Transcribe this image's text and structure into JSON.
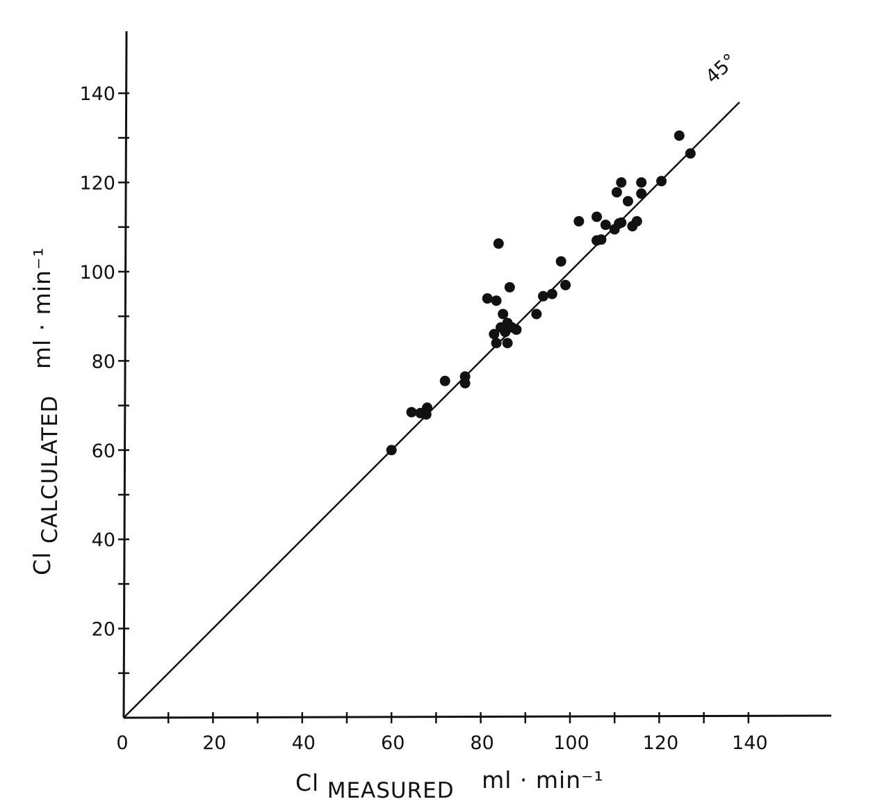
{
  "chart_data": {
    "type": "scatter",
    "xlabel": {
      "main": "Cl",
      "sub": "MEASURED",
      "unit": "ml · min⁻¹"
    },
    "ylabel": {
      "main": "Cl",
      "sub": "CALCULATED",
      "unit": "ml · min⁻¹"
    },
    "xlim": [
      0,
      150
    ],
    "ylim": [
      0,
      150
    ],
    "x_ticks": [
      0,
      20,
      40,
      60,
      80,
      100,
      120,
      140
    ],
    "y_ticks": [
      20,
      40,
      60,
      80,
      100,
      120,
      140
    ],
    "minor_tick_step": 10,
    "grid": false,
    "reference_line": {
      "label": "45°",
      "x": [
        0,
        138
      ],
      "y": [
        0,
        138
      ]
    },
    "points": [
      [
        60,
        60
      ],
      [
        64.5,
        68.5
      ],
      [
        66.5,
        68.3
      ],
      [
        67.8,
        68
      ],
      [
        68,
        69.5
      ],
      [
        72,
        75.5
      ],
      [
        76.5,
        75
      ],
      [
        76.5,
        76.5
      ],
      [
        81.5,
        94
      ],
      [
        83,
        86
      ],
      [
        83.5,
        84
      ],
      [
        83.5,
        93.5
      ],
      [
        84,
        106.3
      ],
      [
        84.5,
        87.5
      ],
      [
        85,
        90.5
      ],
      [
        85.5,
        86.5
      ],
      [
        86,
        88.5
      ],
      [
        86,
        84
      ],
      [
        86.5,
        96.5
      ],
      [
        87,
        87.5
      ],
      [
        88,
        87
      ],
      [
        92.5,
        90.5
      ],
      [
        94,
        94.5
      ],
      [
        96,
        95
      ],
      [
        98,
        102.3
      ],
      [
        99,
        97
      ],
      [
        102,
        111.3
      ],
      [
        106,
        112.3
      ],
      [
        106,
        107
      ],
      [
        107,
        107.2
      ],
      [
        108,
        110.5
      ],
      [
        110,
        109.5
      ],
      [
        110.5,
        117.8
      ],
      [
        111,
        110.8
      ],
      [
        111.5,
        111
      ],
      [
        111.5,
        120
      ],
      [
        113,
        115.8
      ],
      [
        114,
        110.2
      ],
      [
        115,
        111.3
      ],
      [
        116,
        117.5
      ],
      [
        116,
        120
      ],
      [
        120.5,
        120.3
      ],
      [
        124.5,
        130.5
      ],
      [
        127,
        126.5
      ]
    ]
  }
}
